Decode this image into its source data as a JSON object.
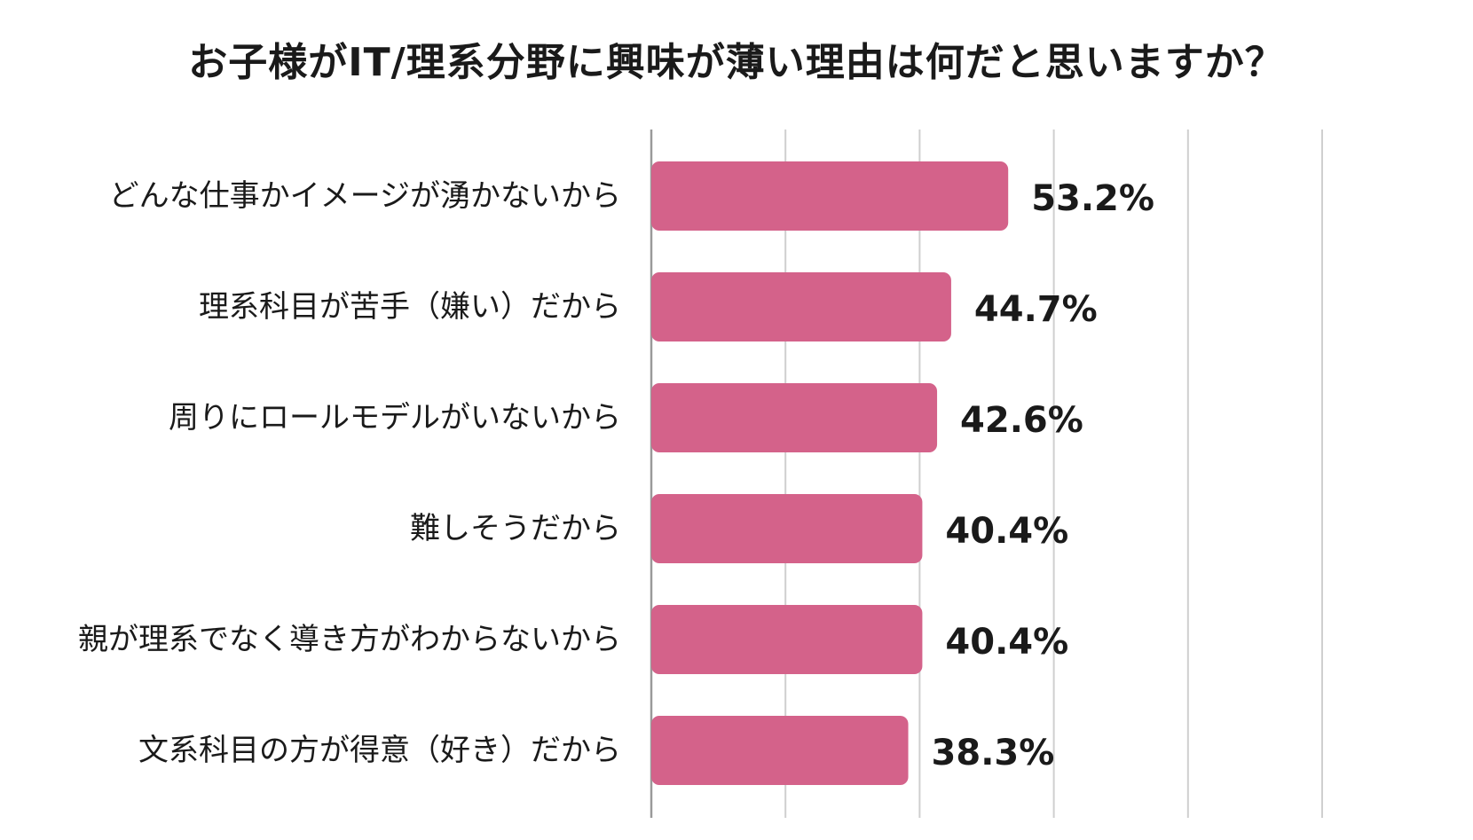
{
  "chart_data": {
    "type": "bar",
    "orientation": "horizontal",
    "title": "お子様がIT/理系分野に興味が薄い理由は何だと思いますか？",
    "categories": [
      "どんな仕事かイメージが湧かないから",
      "理系科目が苦手（嫌い）だから",
      "周りにロールモデルがいないから",
      "難しそうだから",
      "親が理系でなく導き方がわからないから",
      "文系科目の方が得意（好き）だから"
    ],
    "values": [
      53.2,
      44.7,
      42.6,
      40.4,
      40.4,
      38.3
    ],
    "value_labels": [
      "53.2%",
      "44.7%",
      "42.6%",
      "40.4%",
      "40.4%",
      "38.3%"
    ],
    "xlim": [
      0,
      100
    ],
    "grid": true,
    "legend": "none",
    "colors": {
      "bar": "#d4628a",
      "grid": "#cfcfcf",
      "axis": "#9a9a9a",
      "text": "#1a1a1a"
    }
  }
}
